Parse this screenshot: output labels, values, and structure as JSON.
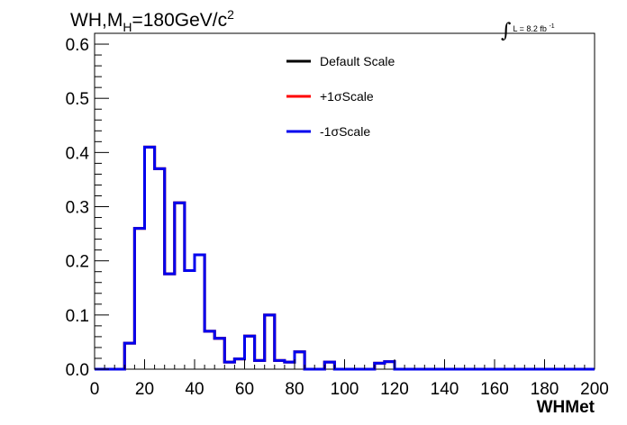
{
  "header": {
    "title_prefix": "WH,M",
    "title_sub": "H",
    "title_mid": "=180GeV/c",
    "title_sup": "2",
    "lumi_text": "L = 8.2 fb",
    "lumi_sup": "-1"
  },
  "chart_data": {
    "type": "histogram",
    "xlabel": "WHMet",
    "ylabel": "",
    "xlim": [
      0,
      200
    ],
    "ylim": [
      0,
      0.62
    ],
    "x_ticks": [
      0,
      20,
      40,
      60,
      80,
      100,
      120,
      140,
      160,
      180,
      200
    ],
    "y_ticks": [
      0.0,
      0.1,
      0.2,
      0.3,
      0.4,
      0.5,
      0.6
    ],
    "y_tick_labels": [
      "0.0",
      "0.1",
      "0.2",
      "0.3",
      "0.4",
      "0.5",
      "0.6"
    ],
    "bin_edges": [
      0,
      4,
      8,
      12,
      16,
      20,
      24,
      28,
      32,
      36,
      40,
      44,
      48,
      52,
      56,
      60,
      64,
      68,
      72,
      76,
      80,
      84,
      88,
      92,
      96,
      100,
      104,
      108,
      112,
      116,
      120,
      124,
      128,
      132,
      136,
      140,
      144,
      148,
      152,
      156,
      160,
      164,
      168,
      172,
      176,
      180,
      184,
      188,
      192,
      196,
      200
    ],
    "series": [
      {
        "name": "Default Scale",
        "color": "#000000",
        "values": [
          0,
          0,
          0,
          0.048,
          0.26,
          0.41,
          0.37,
          0.176,
          0.307,
          0.182,
          0.211,
          0.07,
          0.057,
          0.013,
          0.019,
          0.061,
          0.016,
          0.1,
          0.016,
          0.013,
          0.032,
          0,
          0,
          0.013,
          0,
          0,
          0,
          0,
          0.011,
          0.014,
          0,
          0,
          0,
          0,
          0,
          0,
          0,
          0,
          0,
          0,
          0,
          0,
          0,
          0,
          0,
          0,
          0,
          0,
          0,
          0
        ]
      },
      {
        "name": "+1σScale",
        "color": "#ff0000",
        "values": [
          0,
          0,
          0,
          0.048,
          0.26,
          0.41,
          0.37,
          0.176,
          0.307,
          0.182,
          0.211,
          0.07,
          0.057,
          0.013,
          0.019,
          0.061,
          0.016,
          0.1,
          0.016,
          0.013,
          0.032,
          0,
          0,
          0.013,
          0,
          0,
          0,
          0,
          0.011,
          0.014,
          0,
          0,
          0,
          0,
          0,
          0,
          0,
          0,
          0,
          0,
          0,
          0,
          0,
          0,
          0,
          0,
          0,
          0,
          0,
          0
        ]
      },
      {
        "name": "-1σScale",
        "color": "#0000ee",
        "values": [
          0,
          0,
          0,
          0.048,
          0.26,
          0.41,
          0.37,
          0.176,
          0.307,
          0.182,
          0.211,
          0.07,
          0.057,
          0.013,
          0.019,
          0.061,
          0.016,
          0.1,
          0.016,
          0.013,
          0.032,
          0,
          0,
          0.013,
          0,
          0,
          0,
          0,
          0.011,
          0.014,
          0,
          0,
          0,
          0,
          0,
          0,
          0,
          0,
          0,
          0,
          0,
          0,
          0,
          0,
          0,
          0,
          0,
          0,
          0,
          0
        ]
      }
    ],
    "legend_position": "top-center"
  }
}
